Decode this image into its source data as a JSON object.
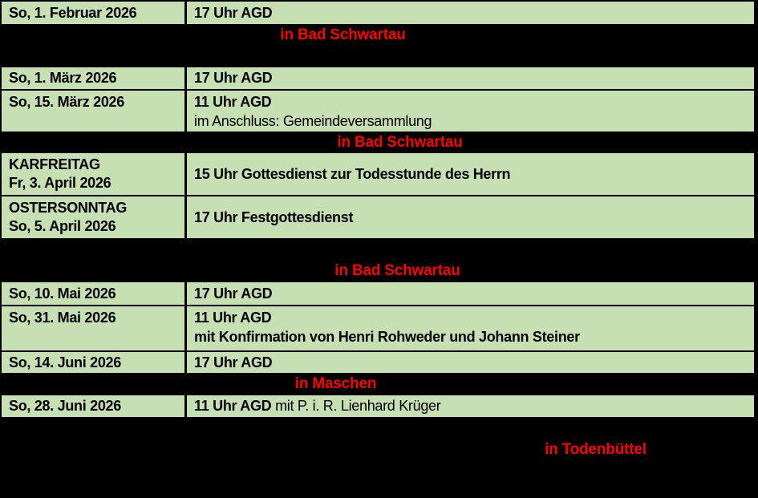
{
  "colors": {
    "row_green": "#c6e0b4",
    "location_red": "#ff0000",
    "background_black": "#000000"
  },
  "rows": [
    {
      "type": "event",
      "date": "So, 1. Februar 2026",
      "time": "17 Uhr AGD"
    },
    {
      "type": "location",
      "label": "in Bad Schwartau"
    },
    {
      "type": "spacer"
    },
    {
      "type": "event",
      "date": "So, 1. März 2026",
      "time": "17 Uhr AGD"
    },
    {
      "type": "event",
      "date": "So, 15. März 2026",
      "time": "11 Uhr AGD",
      "note": "im Anschluss: Gemeindeversammlung"
    },
    {
      "type": "location",
      "label": "in Bad Schwartau"
    },
    {
      "type": "event",
      "date_line1": "KARFREITAG",
      "date_line2": "Fr, 3. April 2026",
      "time": "15 Uhr Gottesdienst zur Todesstunde des Herrn"
    },
    {
      "type": "event",
      "date_line1": "OSTERSONNTAG",
      "date_line2": "So, 5. April 2026",
      "time": "17 Uhr Festgottesdienst"
    },
    {
      "type": "spacer"
    },
    {
      "type": "location",
      "label": "in Bad Schwartau"
    },
    {
      "type": "event",
      "date": "So, 10. Mai 2026",
      "time": "17 Uhr AGD"
    },
    {
      "type": "event",
      "date": "So, 31. Mai 2026",
      "time": "11 Uhr AGD",
      "note": "mit Konfirmation von Henri Rohweder und Johann Steiner"
    },
    {
      "type": "event",
      "date": "So, 14. Juni 2026",
      "time": "17 Uhr AGD"
    },
    {
      "type": "location",
      "label": "in Maschen"
    },
    {
      "type": "event",
      "date": "So, 28. Juni 2026",
      "time": "11 Uhr AGD",
      "time_suffix": " mit P. i. R. Lienhard Krüger"
    },
    {
      "type": "location",
      "label": "in Todenbüttel"
    }
  ]
}
